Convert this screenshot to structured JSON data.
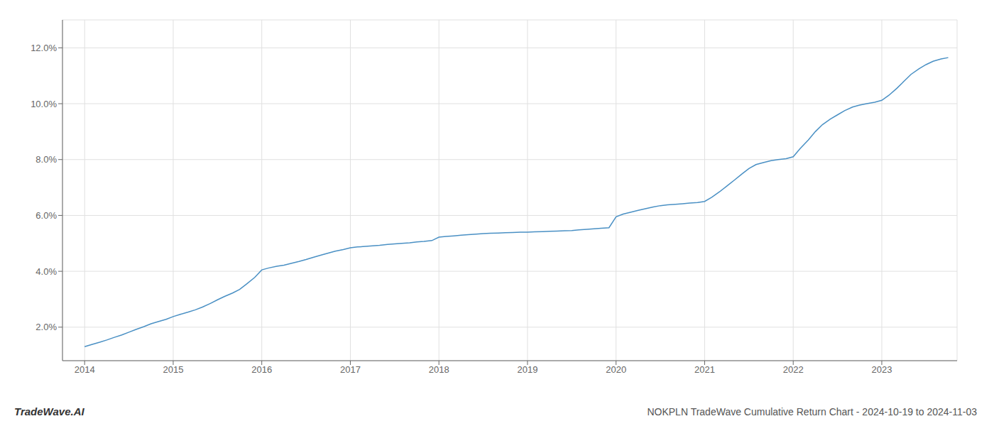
{
  "chart_data": {
    "type": "line",
    "title": "NOKPLN TradeWave Cumulative Return Chart - 2024-10-19 to 2024-11-03",
    "annotations": [
      "TradeWave.AI"
    ],
    "color": "#4a90c4",
    "grid": true,
    "x": [
      2014.0,
      2014.08,
      2014.17,
      2014.25,
      2014.33,
      2014.42,
      2014.5,
      2014.58,
      2014.67,
      2014.75,
      2014.83,
      2014.92,
      2015.0,
      2015.08,
      2015.17,
      2015.25,
      2015.33,
      2015.42,
      2015.5,
      2015.58,
      2015.67,
      2015.75,
      2015.83,
      2015.92,
      2016.0,
      2016.08,
      2016.17,
      2016.25,
      2016.33,
      2016.42,
      2016.5,
      2016.58,
      2016.67,
      2016.75,
      2016.83,
      2016.92,
      2017.0,
      2017.08,
      2017.17,
      2017.25,
      2017.33,
      2017.42,
      2017.5,
      2017.58,
      2017.67,
      2017.75,
      2017.83,
      2017.92,
      2018.0,
      2018.08,
      2018.17,
      2018.25,
      2018.33,
      2018.42,
      2018.5,
      2018.58,
      2018.67,
      2018.75,
      2018.83,
      2018.92,
      2019.0,
      2019.08,
      2019.17,
      2019.25,
      2019.33,
      2019.42,
      2019.5,
      2019.58,
      2019.67,
      2019.75,
      2019.83,
      2019.92,
      2020.0,
      2020.08,
      2020.17,
      2020.25,
      2020.33,
      2020.42,
      2020.5,
      2020.58,
      2020.67,
      2020.75,
      2020.83,
      2020.92,
      2021.0,
      2021.08,
      2021.17,
      2021.25,
      2021.33,
      2021.42,
      2021.5,
      2021.58,
      2021.67,
      2021.75,
      2021.83,
      2021.92,
      2022.0,
      2022.08,
      2022.17,
      2022.25,
      2022.33,
      2022.42,
      2022.5,
      2022.58,
      2022.67,
      2022.75,
      2022.83,
      2022.92,
      2023.0,
      2023.08,
      2023.17,
      2023.25,
      2023.33,
      2023.42,
      2023.5,
      2023.58,
      2023.67,
      2023.75
    ],
    "values": [
      1.3,
      1.38,
      1.46,
      1.54,
      1.63,
      1.72,
      1.82,
      1.92,
      2.02,
      2.12,
      2.2,
      2.28,
      2.38,
      2.46,
      2.54,
      2.62,
      2.72,
      2.85,
      2.98,
      3.1,
      3.22,
      3.35,
      3.55,
      3.78,
      4.05,
      4.12,
      4.18,
      4.22,
      4.28,
      4.35,
      4.42,
      4.5,
      4.58,
      4.65,
      4.72,
      4.78,
      4.84,
      4.87,
      4.89,
      4.91,
      4.93,
      4.96,
      4.98,
      5.0,
      5.02,
      5.05,
      5.07,
      5.1,
      5.22,
      5.25,
      5.27,
      5.29,
      5.31,
      5.33,
      5.35,
      5.36,
      5.37,
      5.38,
      5.39,
      5.4,
      5.4,
      5.41,
      5.42,
      5.43,
      5.44,
      5.45,
      5.46,
      5.48,
      5.5,
      5.52,
      5.54,
      5.56,
      5.95,
      6.05,
      6.12,
      6.18,
      6.24,
      6.3,
      6.35,
      6.38,
      6.4,
      6.42,
      6.44,
      6.46,
      6.5,
      6.65,
      6.85,
      7.05,
      7.25,
      7.48,
      7.68,
      7.82,
      7.9,
      7.96,
      8.0,
      8.03,
      8.1,
      8.4,
      8.7,
      9.0,
      9.25,
      9.45,
      9.6,
      9.75,
      9.88,
      9.95,
      10.0,
      10.05,
      10.12,
      10.3,
      10.55,
      10.8,
      11.05,
      11.25,
      11.4,
      11.52,
      11.6,
      11.65
    ],
    "xlim": [
      2013.75,
      2023.85
    ],
    "xticks": [
      2014,
      2015,
      2016,
      2017,
      2018,
      2019,
      2020,
      2021,
      2022,
      2023
    ],
    "ylim": [
      0.8,
      13.0
    ],
    "yticks": [
      {
        "value": 2.0,
        "label": "2.0%"
      },
      {
        "value": 4.0,
        "label": "4.0%"
      },
      {
        "value": 6.0,
        "label": "6.0%"
      },
      {
        "value": 8.0,
        "label": "8.0%"
      },
      {
        "value": 10.0,
        "label": "10.0%"
      },
      {
        "value": 12.0,
        "label": "12.0%"
      }
    ]
  }
}
